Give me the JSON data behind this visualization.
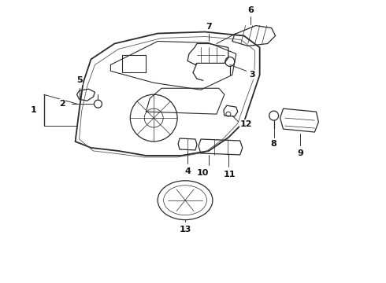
{
  "bg_color": "#ffffff",
  "line_color": "#2a2a2a",
  "label_color": "#111111",
  "figsize": [
    4.9,
    3.6
  ],
  "dpi": 100
}
